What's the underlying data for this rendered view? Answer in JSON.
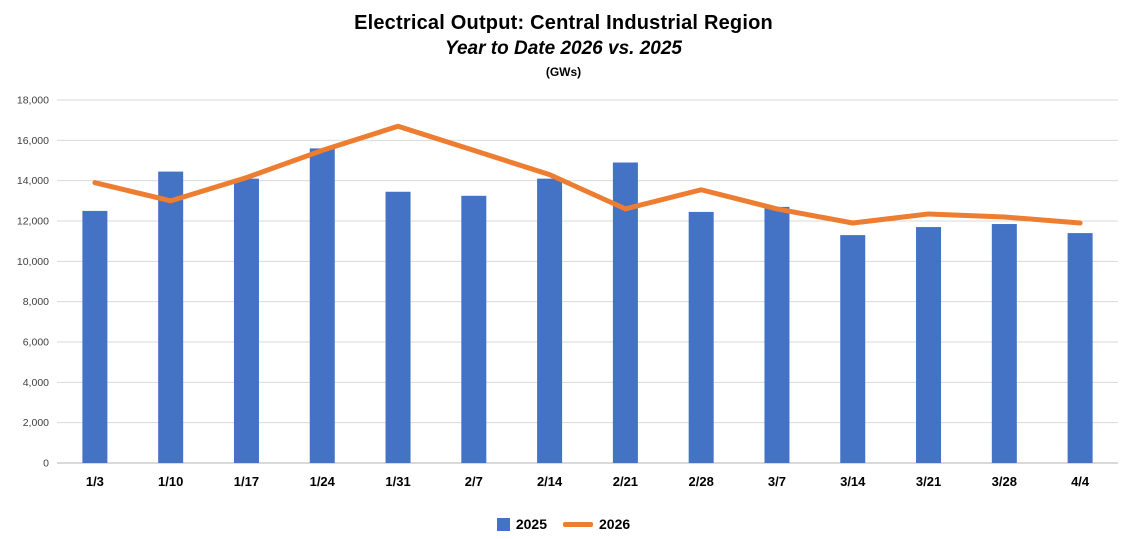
{
  "chart_data": {
    "type": "bar",
    "title": "Electrical Output:  Central Industrial Region",
    "subtitle": "Year to Date 2026 vs. 2025",
    "units_label": "(GWs)",
    "categories": [
      "1/3",
      "1/10",
      "1/17",
      "1/24",
      "1/31",
      "2/7",
      "2/14",
      "2/21",
      "2/28",
      "3/7",
      "3/14",
      "3/21",
      "3/28",
      "4/4"
    ],
    "series": [
      {
        "name": "2025",
        "type": "bar",
        "color": "#4472C4",
        "values": [
          12500,
          14450,
          14100,
          15600,
          13450,
          13250,
          14100,
          14900,
          12450,
          12700,
          11300,
          11700,
          11850,
          11400
        ]
      },
      {
        "name": "2026",
        "type": "line",
        "color": "#ED7D31",
        "values": [
          13900,
          13000,
          14150,
          15500,
          16700,
          15500,
          14300,
          12600,
          13550,
          12600,
          11900,
          12350,
          12200,
          11900
        ]
      }
    ],
    "ylim": [
      0,
      18000
    ],
    "ytick_step": 2000,
    "grid": true,
    "legend_position": "bottom"
  }
}
